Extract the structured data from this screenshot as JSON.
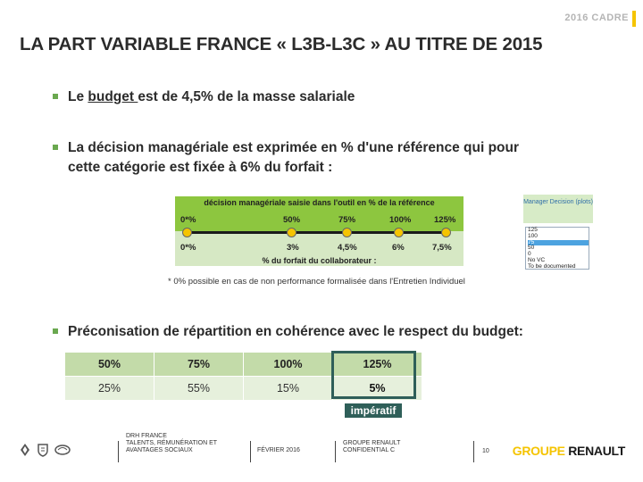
{
  "header": {
    "tag": "2016 CADRE",
    "title": "LA PART VARIABLE FRANCE « L3B-L3C » AU TITRE DE 2015"
  },
  "bullets": {
    "b1_pre": "Le ",
    "b1_underline": "budget ",
    "b1_post": "est de 4,5% de la masse salariale",
    "b2_line1": "La décision managériale est exprimée en % d'une référence qui pour",
    "b2_line2": "cette catégorie est fixée à 6% du forfait :",
    "b3": "Préconisation de répartition en cohérence avec le respect du budget:"
  },
  "scale": {
    "header": "décision managériale saisie dans l'outil en % de la référence",
    "top_labels": [
      "0*%",
      "50%",
      "75%",
      "100%",
      "125%"
    ],
    "bottom_labels": [
      "0*%",
      "3%",
      "4,5%",
      "6%",
      "7,5%"
    ],
    "footer": "% du forfait du collaborateur :"
  },
  "footnote": "* 0% possible  en cas de non performance  formalisée  dans l'Entretien  Individuel",
  "widget": {
    "title": "Manager Decision (plots)",
    "options": [
      "125",
      "100",
      "75",
      "50",
      "0",
      "No VC",
      "To be documented"
    ],
    "selected_index": 2
  },
  "table": {
    "headers": [
      "50%",
      "75%",
      "100%",
      "125%"
    ],
    "values": [
      "25%",
      "55%",
      "15%",
      "5%"
    ],
    "highlight_label": "impératif"
  },
  "footer": {
    "dept_line1": "DRH FRANCE",
    "dept_line2": "TALENTS, RÉMUNÉRATION ET",
    "dept_line3": "AVANTAGES SOCIAUX",
    "date": "FÉVRIER 2016",
    "company_line1": "GROUPE RENAULT",
    "company_line2": "CONFIDENTIAL C",
    "page": "10",
    "logo_part1": "GROUPE ",
    "logo_part2": "RENAULT",
    "colors": {
      "logo_yellow": "#f5c400",
      "accent_green": "#8dc63f",
      "teal": "#2f5f59"
    }
  }
}
